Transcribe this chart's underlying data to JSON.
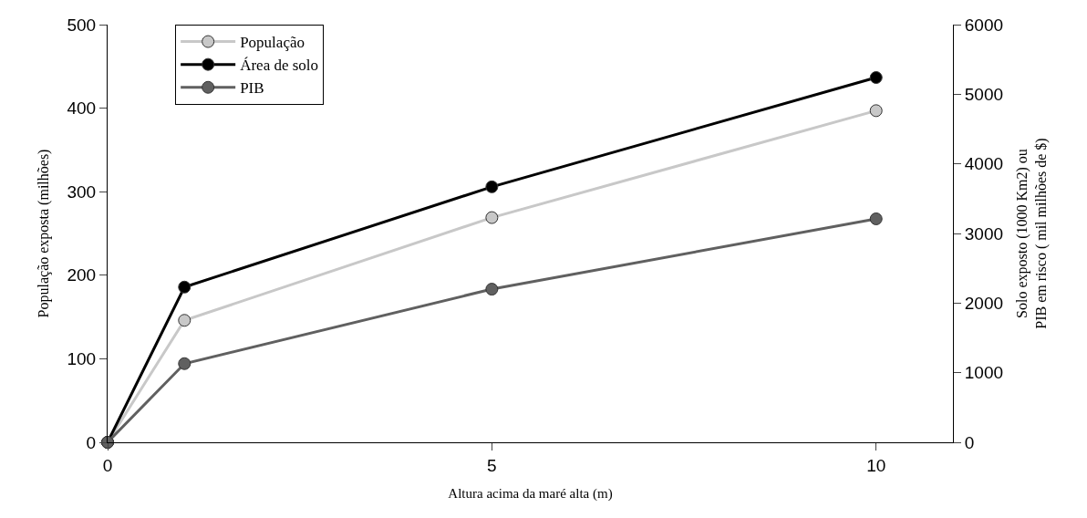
{
  "chart_data": {
    "type": "line",
    "xlabel": "Altura acima da maré alta (m)",
    "ylabel": "População exposta (milhões)",
    "y2label": "Solo exposto (1000 Km2) ou\nPIB em risco ( mil milhões de $)",
    "x": [
      0,
      1,
      5,
      10
    ],
    "series": [
      {
        "name": "População",
        "color": "#c8c8c8",
        "values": [
          0,
          146,
          269,
          397
        ]
      },
      {
        "name": "Área de solo",
        "color": "#000000",
        "values": [
          0,
          2230,
          3670,
          5240
        ],
        "axis": "y2"
      },
      {
        "name": "PIB",
        "color": "#606060",
        "values": [
          0,
          1130,
          2200,
          3210
        ],
        "axis": "y2"
      }
    ],
    "xlim": [
      0,
      11
    ],
    "xticks": [
      0,
      5,
      10
    ],
    "ylim": [
      0,
      500
    ],
    "yticks": [
      0,
      100,
      200,
      300,
      400,
      500
    ],
    "y2lim": [
      0,
      6000
    ],
    "y2ticks": [
      0,
      1000,
      2000,
      3000,
      4000,
      5000,
      6000
    ],
    "marker": "circle",
    "line_style": "solid",
    "legend": "top left"
  }
}
